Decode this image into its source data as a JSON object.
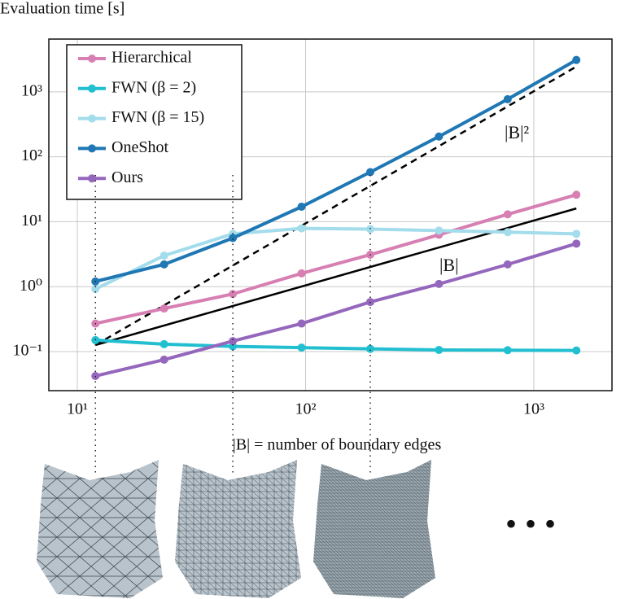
{
  "chart_data": {
    "type": "line",
    "y_label": "Evaluation time [s]",
    "x_label": "|B| = number of boundary edges",
    "log_x": true,
    "log_y": true,
    "grid": true,
    "legend": "upper left",
    "x": [
      12,
      24,
      48,
      96,
      192,
      384,
      768,
      1536
    ],
    "series": [
      {
        "name": "Hierarchical",
        "color": "#d77fb3",
        "values": [
          0.27,
          0.46,
          0.77,
          1.6,
          3.1,
          6.3,
          13,
          26
        ]
      },
      {
        "name": "FWN (β = 2)",
        "color": "#22bfd0",
        "values": [
          0.15,
          0.13,
          0.12,
          0.115,
          0.11,
          0.106,
          0.105,
          0.104
        ]
      },
      {
        "name": "FWN (β = 15)",
        "color": "#a3dceb",
        "values": [
          0.92,
          3.0,
          6.5,
          7.9,
          7.7,
          7.3,
          6.9,
          6.5
        ]
      },
      {
        "name": "OneShot",
        "color": "#1f77b4",
        "values": [
          1.2,
          2.2,
          5.6,
          17,
          58,
          205,
          770,
          3100
        ]
      },
      {
        "name": "Ours",
        "color": "#9467bd",
        "values": [
          0.042,
          0.075,
          0.145,
          0.27,
          0.58,
          1.1,
          2.2,
          4.6
        ]
      }
    ],
    "reference_lines": [
      {
        "label": "|B|²",
        "dash": true,
        "x": [
          12,
          1536
        ],
        "values": [
          0.126,
          2450
        ]
      },
      {
        "label": "|B|",
        "dash": false,
        "x": [
          12,
          1536
        ],
        "values": [
          0.126,
          16
        ]
      }
    ],
    "mesh_sizes": [
      12,
      48,
      192
    ],
    "continuation": "• • •",
    "xlim": [
      7.5,
      2200
    ],
    "ylim": [
      0.025,
      6500
    ],
    "xticks": [
      {
        "value": 10,
        "label": "10¹"
      },
      {
        "value": 100,
        "label": "10²"
      },
      {
        "value": 1000,
        "label": "10³"
      }
    ],
    "yticks": [
      {
        "value": 0.1,
        "label": "10⁻¹"
      },
      {
        "value": 1,
        "label": "10⁰"
      },
      {
        "value": 10,
        "label": "10¹"
      },
      {
        "value": 100,
        "label": "10²"
      },
      {
        "value": 1000,
        "label": "10³"
      }
    ]
  }
}
